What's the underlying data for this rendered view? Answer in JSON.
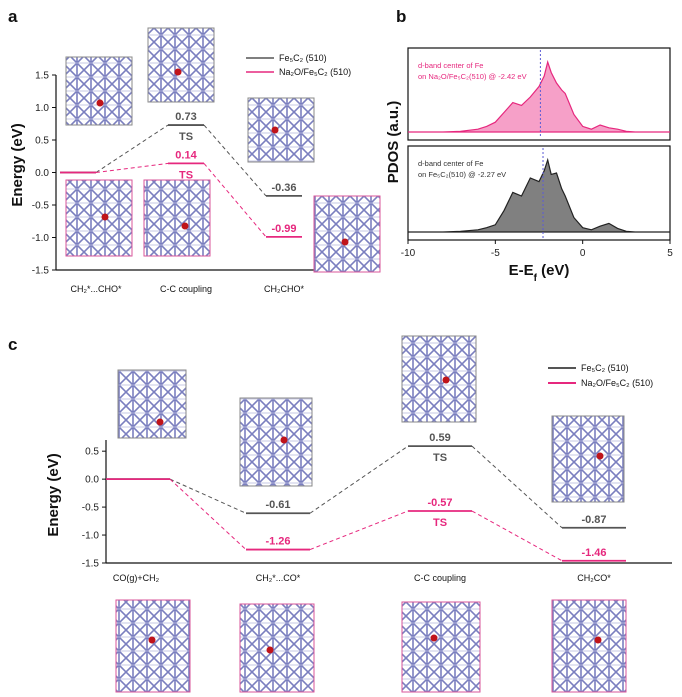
{
  "colors": {
    "fe5c2": "#555555",
    "na2o": "#e6287e",
    "lattice": "#7b7fbf",
    "box": "#d9559a",
    "boxgray": "#888888",
    "fill_pink": "#f48fbe",
    "fill_gray": "#6a6a6a"
  },
  "chart_data": [
    {
      "id": "a",
      "type": "line",
      "panel_label": "a",
      "ylabel": "Energy (eV)",
      "ylim": [
        -1.5,
        1.5
      ],
      "yticks": [
        "1.5",
        "1.0",
        "0.5",
        "0.0",
        "-0.5",
        "-1.0",
        "-1.5"
      ],
      "categories": [
        "CH₂*...CHO*",
        "C-C coupling",
        "CH₂CHO*"
      ],
      "series": [
        {
          "name": "Fe₅C₂ (510)",
          "values": [
            0.0,
            0.73,
            -0.36
          ],
          "labels": [
            "",
            "0.73",
            "-0.36"
          ],
          "ts_label": "TS"
        },
        {
          "name": "Na₂O/Fe₅C₂ (510)",
          "values": [
            0.0,
            0.14,
            -0.99
          ],
          "labels": [
            "",
            "0.14",
            "-0.99"
          ],
          "ts_label": "TS"
        }
      ],
      "legend_position": "top-right"
    },
    {
      "id": "b",
      "type": "area",
      "panel_label": "b",
      "xlabel": "E-E_f (eV)",
      "ylabel": "PDOS (a.u.)",
      "xlim": [
        -10,
        5
      ],
      "xticks": [
        "-10",
        "-5",
        "0",
        "5"
      ],
      "series": [
        {
          "name": "Na₂O/Fe₅C₂",
          "annotation_line1": "d-band center of Fe",
          "annotation_line2": "on Na₂O/Fe₅C₂(510) @ -2.42 eV",
          "d_band_center": -2.42,
          "x": [
            -10,
            -8,
            -7,
            -6,
            -5.5,
            -5,
            -4.5,
            -4,
            -3.5,
            -3,
            -2.5,
            -2.2,
            -2,
            -1.8,
            -1.5,
            -1.2,
            -1,
            -0.5,
            0,
            0.5,
            1,
            1.5,
            2,
            2.5,
            3,
            5
          ],
          "y": [
            0.0,
            0.0,
            0.01,
            0.04,
            0.08,
            0.14,
            0.28,
            0.42,
            0.38,
            0.5,
            0.65,
            0.8,
            1.0,
            0.85,
            0.7,
            0.6,
            0.55,
            0.25,
            0.08,
            0.04,
            0.1,
            0.06,
            0.04,
            0.01,
            0.0,
            0.0
          ]
        },
        {
          "name": "Fe₅C₂",
          "annotation_line1": "d-band center of Fe",
          "annotation_line2": "on Fe₅C₂(510) @ -2.27 eV",
          "d_band_center": -2.27,
          "x": [
            -10,
            -8,
            -7,
            -6,
            -5.5,
            -5,
            -4.5,
            -4,
            -3.5,
            -3,
            -2.5,
            -2.2,
            -2,
            -1.8,
            -1.5,
            -1.2,
            -1,
            -0.5,
            0,
            0.5,
            1,
            1.5,
            2,
            2.5,
            3,
            5
          ],
          "y": [
            0.0,
            0.0,
            0.01,
            0.03,
            0.06,
            0.1,
            0.3,
            0.55,
            0.5,
            0.75,
            0.7,
            0.85,
            1.0,
            0.8,
            0.82,
            0.6,
            0.5,
            0.2,
            0.06,
            0.03,
            0.08,
            0.12,
            0.05,
            0.01,
            0.0,
            0.0
          ]
        }
      ]
    },
    {
      "id": "c",
      "type": "line",
      "panel_label": "c",
      "ylabel": "Energy (eV)",
      "ylim": [
        -1.5,
        0.7
      ],
      "yticks": [
        "0.5",
        "0.0",
        "-0.5",
        "-1.0",
        "-1.5"
      ],
      "categories": [
        "CO(g)+CH₂",
        "CH₂*...CO*",
        "C-C coupling",
        "CH₂CO*"
      ],
      "series": [
        {
          "name": "Fe₅C₂ (510)",
          "values": [
            0.0,
            -0.61,
            0.59,
            -0.87
          ],
          "labels": [
            "",
            "-0.61",
            "0.59",
            "-0.87"
          ],
          "ts_label": "TS"
        },
        {
          "name": "Na₂O/Fe₅C₂ (510)",
          "values": [
            0.0,
            -1.26,
            -0.57,
            -1.46
          ],
          "labels": [
            "",
            "-1.26",
            "-0.57",
            "-1.46"
          ],
          "ts_label": "TS"
        }
      ],
      "legend_position": "top-right"
    }
  ]
}
